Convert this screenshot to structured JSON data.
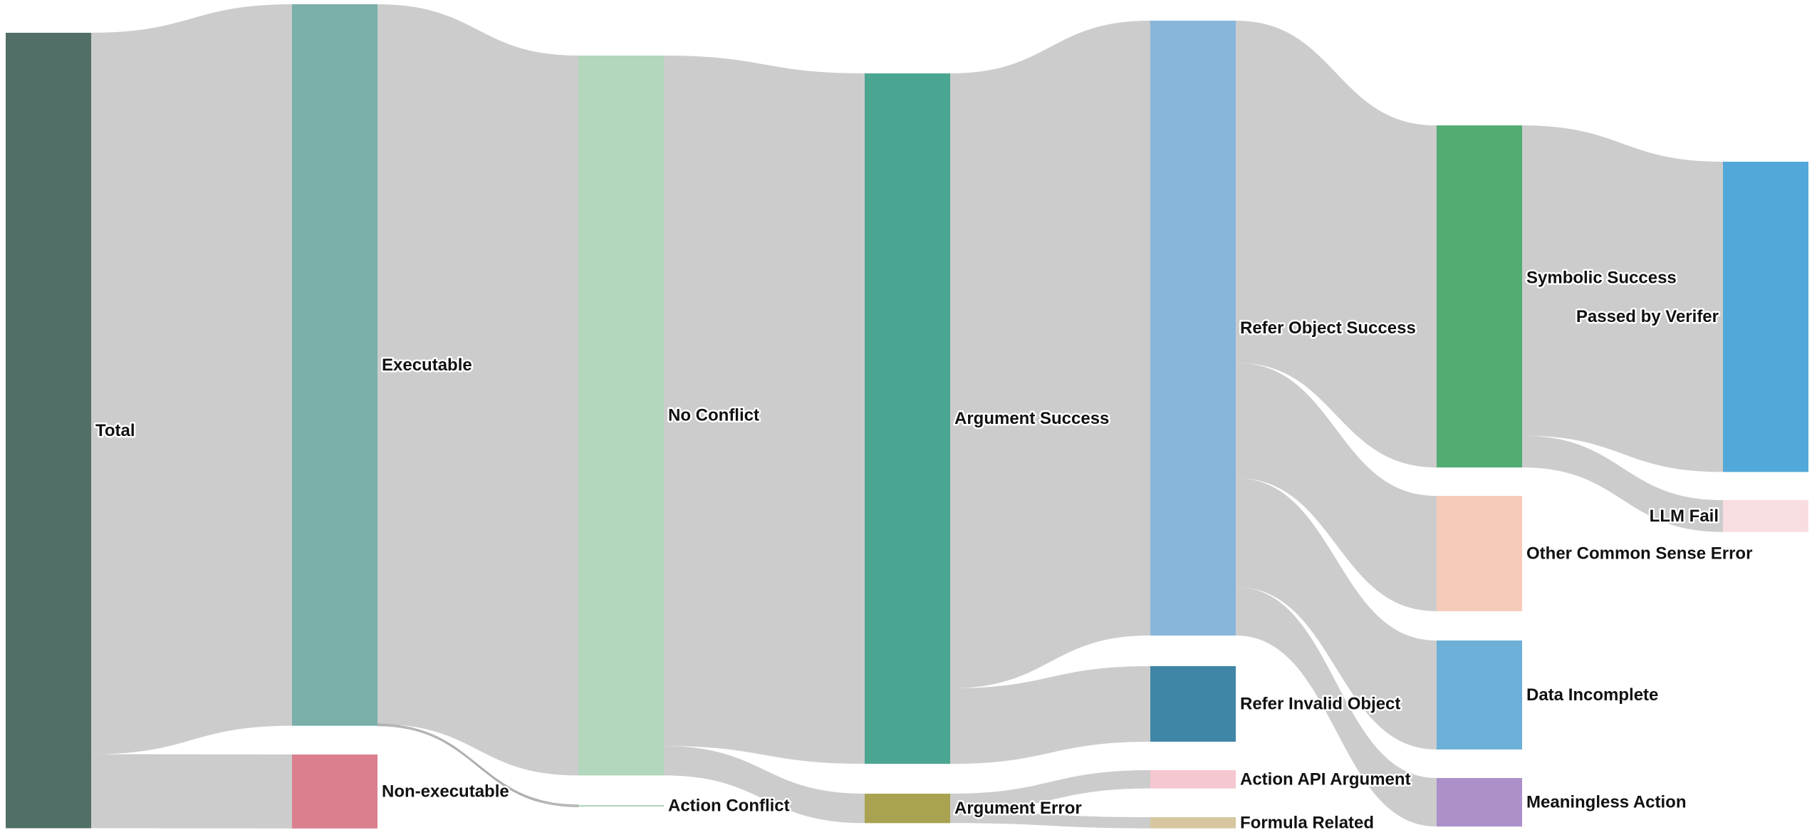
{
  "chart_data": {
    "type": "sankey",
    "title": "",
    "colors": {
      "link": "#cccccc",
      "label": "#111111"
    },
    "nodes": [
      {
        "id": "total",
        "label": "Total",
        "value": 1000,
        "color": "#516f67"
      },
      {
        "id": "executable",
        "label": "Executable",
        "value": 907,
        "color": "#7aafaa"
      },
      {
        "id": "non_executable",
        "label": "Non-executable",
        "value": 93,
        "color": "#db7f8e"
      },
      {
        "id": "no_conflict",
        "label": "No Conflict",
        "value": 905,
        "color": "#b2d7bc"
      },
      {
        "id": "action_conflict",
        "label": "Action Conflict",
        "value": 2,
        "color": "#b2d7bc"
      },
      {
        "id": "argument_success",
        "label": "Argument Success",
        "value": 868,
        "color": "#4aa690"
      },
      {
        "id": "argument_error",
        "label": "Argument Error",
        "value": 37,
        "color": "#a9a351"
      },
      {
        "id": "refer_object_success",
        "label": "Refer Object Success",
        "value": 773,
        "color": "#88b6db"
      },
      {
        "id": "refer_invalid_object",
        "label": "Refer Invalid Object",
        "value": 95,
        "color": "#3f86a6"
      },
      {
        "id": "action_api_argument",
        "label": "Action API Argument",
        "value": 23,
        "color": "#f5c7d0"
      },
      {
        "id": "formula_related",
        "label": "Formula Related",
        "value": 14,
        "color": "#d7c6a0"
      },
      {
        "id": "symbolic_success",
        "label": "Symbolic Success",
        "value": 430,
        "color": "#53ac72"
      },
      {
        "id": "other_common_sense_error",
        "label": "Other Common Sense Error",
        "value": 145,
        "color": "#f6cbb8"
      },
      {
        "id": "data_incomplete",
        "label": "Data Incomplete",
        "value": 137,
        "color": "#6cafd7"
      },
      {
        "id": "meaningless_action",
        "label": "Meaningless Action",
        "value": 61,
        "color": "#ab90c9"
      },
      {
        "id": "passed_by_verifier",
        "label": "Passed by Verifer",
        "value": 390,
        "color": "#52a8d9"
      },
      {
        "id": "llm_fail",
        "label": "LLM Fail",
        "value": 40,
        "color": "#f8dde1"
      }
    ],
    "links": [
      {
        "source": "total",
        "target": "executable",
        "value": 907
      },
      {
        "source": "total",
        "target": "non_executable",
        "value": 93
      },
      {
        "source": "executable",
        "target": "no_conflict",
        "value": 905
      },
      {
        "source": "executable",
        "target": "action_conflict",
        "value": 2
      },
      {
        "source": "no_conflict",
        "target": "argument_success",
        "value": 868
      },
      {
        "source": "no_conflict",
        "target": "argument_error",
        "value": 37
      },
      {
        "source": "argument_success",
        "target": "refer_object_success",
        "value": 773
      },
      {
        "source": "argument_success",
        "target": "refer_invalid_object",
        "value": 95
      },
      {
        "source": "argument_error",
        "target": "action_api_argument",
        "value": 23
      },
      {
        "source": "argument_error",
        "target": "formula_related",
        "value": 14
      },
      {
        "source": "refer_object_success",
        "target": "symbolic_success",
        "value": 430
      },
      {
        "source": "refer_object_success",
        "target": "other_common_sense_error",
        "value": 145
      },
      {
        "source": "refer_object_success",
        "target": "data_incomplete",
        "value": 137
      },
      {
        "source": "refer_object_success",
        "target": "meaningless_action",
        "value": 61
      },
      {
        "source": "symbolic_success",
        "target": "passed_by_verifier",
        "value": 390
      },
      {
        "source": "symbolic_success",
        "target": "llm_fail",
        "value": 40
      }
    ]
  }
}
